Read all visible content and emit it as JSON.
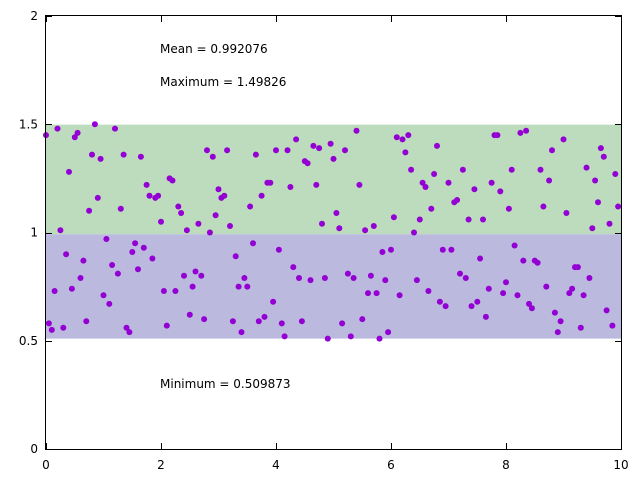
{
  "chart_data": {
    "type": "scatter",
    "title": "",
    "xlabel": "",
    "ylabel": "",
    "xlim": [
      0,
      10
    ],
    "ylim": [
      0,
      2
    ],
    "xticks": [
      0,
      2,
      4,
      6,
      8,
      10
    ],
    "yticks": [
      0,
      0.5,
      1,
      1.5,
      2
    ],
    "xtick_labels": [
      "0",
      "2",
      "4",
      "6",
      "8",
      "10"
    ],
    "ytick_labels": [
      "0",
      "0.5",
      "1",
      "1.5",
      "2"
    ],
    "grid": false,
    "colors": {
      "points": "#9400d3",
      "band_upper": "#bddcbd",
      "band_lower": "#bbb9dd"
    },
    "bands": [
      {
        "y0": 0.992076,
        "y1": 1.49826,
        "color": "#bddcbd"
      },
      {
        "y0": 0.509873,
        "y1": 0.992076,
        "color": "#bbb9dd"
      }
    ],
    "annotations": {
      "mean": "Mean = 0.992076",
      "maximum": "Maximum = 1.49826",
      "minimum": "Minimum = 0.509873"
    },
    "series": [
      {
        "values": [
          [
            0.0,
            1.45
          ],
          [
            0.05,
            0.58
          ],
          [
            0.1,
            0.55
          ],
          [
            0.15,
            0.73
          ],
          [
            0.2,
            1.48
          ],
          [
            0.25,
            1.01
          ],
          [
            0.3,
            0.56
          ],
          [
            0.35,
            0.9
          ],
          [
            0.4,
            1.28
          ],
          [
            0.45,
            0.74
          ],
          [
            0.5,
            1.44
          ],
          [
            0.55,
            1.46
          ],
          [
            0.6,
            0.79
          ],
          [
            0.65,
            0.87
          ],
          [
            0.7,
            0.59
          ],
          [
            0.75,
            1.1
          ],
          [
            0.8,
            1.36
          ],
          [
            0.85,
            1.5
          ],
          [
            0.9,
            1.16
          ],
          [
            0.95,
            1.34
          ],
          [
            1.0,
            0.71
          ],
          [
            1.05,
            0.97
          ],
          [
            1.1,
            0.67
          ],
          [
            1.15,
            0.85
          ],
          [
            1.2,
            1.48
          ],
          [
            1.25,
            0.81
          ],
          [
            1.3,
            1.11
          ],
          [
            1.35,
            1.36
          ],
          [
            1.4,
            0.56
          ],
          [
            1.45,
            0.54
          ],
          [
            1.5,
            0.91
          ],
          [
            1.55,
            0.95
          ],
          [
            1.6,
            0.83
          ],
          [
            1.65,
            1.35
          ],
          [
            1.7,
            0.93
          ],
          [
            1.75,
            1.22
          ],
          [
            1.8,
            1.17
          ],
          [
            1.85,
            0.88
          ],
          [
            1.9,
            1.16
          ],
          [
            1.95,
            1.17
          ],
          [
            2.0,
            1.05
          ],
          [
            2.05,
            0.73
          ],
          [
            2.1,
            0.57
          ],
          [
            2.15,
            1.25
          ],
          [
            2.2,
            1.24
          ],
          [
            2.25,
            0.73
          ],
          [
            2.3,
            1.12
          ],
          [
            2.35,
            1.09
          ],
          [
            2.4,
            0.8
          ],
          [
            2.45,
            1.01
          ],
          [
            2.5,
            0.62
          ],
          [
            2.55,
            0.75
          ],
          [
            2.6,
            0.82
          ],
          [
            2.65,
            1.04
          ],
          [
            2.7,
            0.8
          ],
          [
            2.75,
            0.6
          ],
          [
            2.8,
            1.38
          ],
          [
            2.85,
            1.0
          ],
          [
            2.9,
            1.35
          ],
          [
            2.95,
            1.08
          ],
          [
            3.0,
            1.2
          ],
          [
            3.05,
            1.16
          ],
          [
            3.1,
            1.17
          ],
          [
            3.15,
            1.38
          ],
          [
            3.2,
            1.03
          ],
          [
            3.25,
            0.59
          ],
          [
            3.3,
            0.89
          ],
          [
            3.35,
            0.75
          ],
          [
            3.4,
            0.54
          ],
          [
            3.45,
            0.79
          ],
          [
            3.5,
            0.75
          ],
          [
            3.55,
            1.12
          ],
          [
            3.6,
            0.95
          ],
          [
            3.65,
            1.36
          ],
          [
            3.7,
            0.59
          ],
          [
            3.75,
            1.17
          ],
          [
            3.8,
            0.61
          ],
          [
            3.85,
            1.23
          ],
          [
            3.9,
            1.23
          ],
          [
            3.95,
            0.68
          ],
          [
            4.0,
            1.38
          ],
          [
            4.05,
            0.92
          ],
          [
            4.1,
            0.58
          ],
          [
            4.15,
            0.52
          ],
          [
            4.2,
            1.38
          ],
          [
            4.25,
            1.21
          ],
          [
            4.3,
            0.84
          ],
          [
            4.35,
            1.43
          ],
          [
            4.4,
            0.79
          ],
          [
            4.45,
            0.59
          ],
          [
            4.5,
            1.33
          ],
          [
            4.55,
            1.32
          ],
          [
            4.6,
            0.78
          ],
          [
            4.65,
            1.4
          ],
          [
            4.7,
            1.22
          ],
          [
            4.75,
            1.39
          ],
          [
            4.8,
            1.04
          ],
          [
            4.85,
            0.79
          ],
          [
            4.9,
            0.51
          ],
          [
            4.95,
            1.41
          ],
          [
            5.0,
            1.34
          ],
          [
            5.05,
            1.09
          ],
          [
            5.1,
            1.02
          ],
          [
            5.15,
            0.58
          ],
          [
            5.2,
            1.38
          ],
          [
            5.25,
            0.81
          ],
          [
            5.3,
            0.52
          ],
          [
            5.35,
            0.79
          ],
          [
            5.4,
            1.47
          ],
          [
            5.45,
            1.22
          ],
          [
            5.5,
            0.6
          ],
          [
            5.55,
            1.01
          ],
          [
            5.6,
            0.72
          ],
          [
            5.65,
            0.8
          ],
          [
            5.7,
            1.03
          ],
          [
            5.75,
            0.72
          ],
          [
            5.8,
            0.51
          ],
          [
            5.85,
            0.91
          ],
          [
            5.9,
            0.78
          ],
          [
            5.95,
            0.54
          ],
          [
            6.0,
            0.92
          ],
          [
            6.05,
            1.07
          ],
          [
            6.1,
            1.44
          ],
          [
            6.15,
            0.71
          ],
          [
            6.2,
            1.43
          ],
          [
            6.25,
            1.37
          ],
          [
            6.3,
            1.45
          ],
          [
            6.35,
            1.29
          ],
          [
            6.4,
            1.0
          ],
          [
            6.45,
            0.78
          ],
          [
            6.5,
            1.06
          ],
          [
            6.55,
            1.23
          ],
          [
            6.6,
            1.21
          ],
          [
            6.65,
            0.73
          ],
          [
            6.7,
            1.11
          ],
          [
            6.75,
            1.27
          ],
          [
            6.8,
            1.4
          ],
          [
            6.85,
            0.68
          ],
          [
            6.9,
            0.92
          ],
          [
            6.95,
            0.66
          ],
          [
            7.0,
            1.23
          ],
          [
            7.05,
            0.92
          ],
          [
            7.1,
            1.14
          ],
          [
            7.15,
            1.15
          ],
          [
            7.2,
            0.81
          ],
          [
            7.25,
            1.29
          ],
          [
            7.3,
            0.79
          ],
          [
            7.35,
            1.06
          ],
          [
            7.4,
            0.66
          ],
          [
            7.45,
            1.2
          ],
          [
            7.5,
            0.68
          ],
          [
            7.55,
            0.88
          ],
          [
            7.6,
            1.06
          ],
          [
            7.65,
            0.61
          ],
          [
            7.7,
            0.74
          ],
          [
            7.75,
            1.23
          ],
          [
            7.8,
            1.45
          ],
          [
            7.85,
            1.45
          ],
          [
            7.9,
            1.19
          ],
          [
            7.95,
            0.72
          ],
          [
            8.0,
            0.77
          ],
          [
            8.05,
            1.11
          ],
          [
            8.1,
            1.29
          ],
          [
            8.15,
            0.94
          ],
          [
            8.2,
            0.71
          ],
          [
            8.25,
            1.46
          ],
          [
            8.3,
            0.87
          ],
          [
            8.35,
            1.47
          ],
          [
            8.4,
            0.67
          ],
          [
            8.45,
            0.65
          ],
          [
            8.5,
            0.87
          ],
          [
            8.55,
            0.86
          ],
          [
            8.6,
            1.29
          ],
          [
            8.65,
            1.12
          ],
          [
            8.7,
            0.75
          ],
          [
            8.75,
            1.24
          ],
          [
            8.8,
            1.38
          ],
          [
            8.85,
            0.63
          ],
          [
            8.9,
            0.54
          ],
          [
            8.95,
            0.59
          ],
          [
            9.0,
            1.43
          ],
          [
            9.05,
            1.09
          ],
          [
            9.1,
            0.72
          ],
          [
            9.15,
            0.74
          ],
          [
            9.2,
            0.84
          ],
          [
            9.25,
            0.84
          ],
          [
            9.3,
            0.56
          ],
          [
            9.35,
            0.71
          ],
          [
            9.4,
            1.3
          ],
          [
            9.45,
            0.79
          ],
          [
            9.5,
            1.02
          ],
          [
            9.55,
            1.24
          ],
          [
            9.6,
            1.14
          ],
          [
            9.65,
            1.39
          ],
          [
            9.7,
            1.35
          ],
          [
            9.75,
            0.64
          ],
          [
            9.8,
            1.04
          ],
          [
            9.85,
            0.57
          ],
          [
            9.9,
            1.27
          ],
          [
            9.95,
            1.12
          ]
        ]
      }
    ]
  }
}
